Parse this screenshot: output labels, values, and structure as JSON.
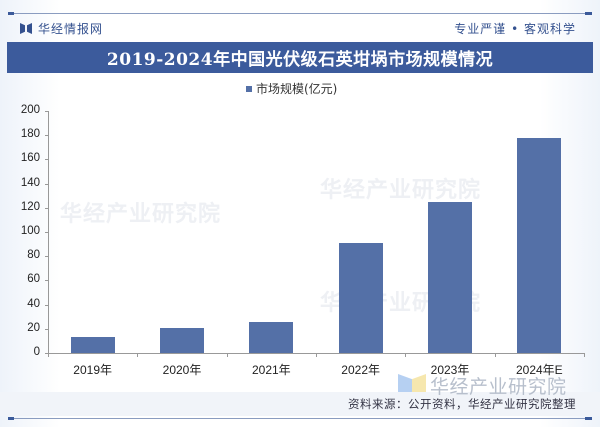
{
  "header": {
    "brand": "华经情报网",
    "slogan": "专业严谨 • 客观科学",
    "title": "2019-2024年中国光伏级石英坩埚市场规模情况"
  },
  "legend": {
    "label": "市场规模(亿元)"
  },
  "footer": {
    "source": "资料来源：公开资料，华经产业研究院整理",
    "watermark": "华经产业研究院"
  },
  "colors": {
    "title_bar": "#3c5b9c",
    "bar": "#5470a7",
    "brand": "#34518f"
  },
  "chart_data": {
    "type": "bar",
    "title": "2019-2024年中国光伏级石英坩埚市场规模情况",
    "xlabel": "",
    "ylabel": "",
    "categories": [
      "2019年",
      "2020年",
      "2021年",
      "2022年",
      "2023年",
      "2024年E"
    ],
    "series": [
      {
        "name": "市场规模(亿元)",
        "values": [
          13,
          21,
          26,
          91,
          125,
          178
        ]
      }
    ],
    "ylim": [
      0,
      200
    ],
    "yticks": [
      0,
      20,
      40,
      60,
      80,
      100,
      120,
      140,
      160,
      180,
      200
    ],
    "grid": false,
    "legend_position": "top"
  }
}
